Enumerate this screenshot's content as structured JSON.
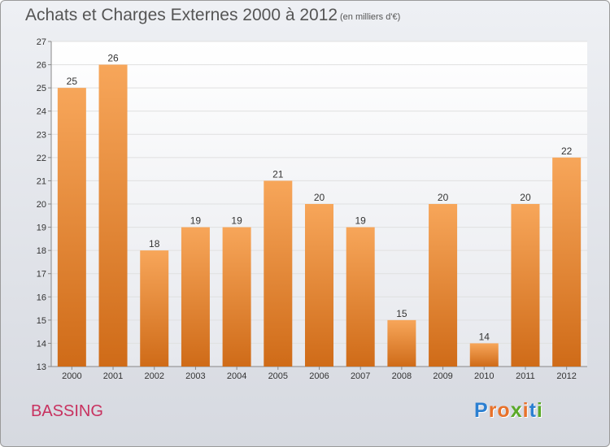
{
  "chart_data": {
    "type": "bar",
    "title": "Achats et Charges Externes 2000 à 2012",
    "unit": "(en milliers d'€)",
    "categories": [
      "2000",
      "2001",
      "2002",
      "2003",
      "2004",
      "2005",
      "2006",
      "2007",
      "2008",
      "2009",
      "2010",
      "2011",
      "2012"
    ],
    "values": [
      25,
      26,
      18,
      19,
      19,
      21,
      20,
      19,
      15,
      20,
      14,
      20,
      22
    ],
    "ylim": [
      13,
      27
    ],
    "yticks": [
      13,
      14,
      15,
      16,
      17,
      18,
      19,
      20,
      21,
      22,
      23,
      24,
      25,
      26,
      27
    ],
    "grid": true,
    "bar_color": "#f0913c"
  },
  "footer": {
    "commune": "BASSING",
    "logo": "Proxiti"
  },
  "logo_colors": [
    "#2b7fd1",
    "#e8712a",
    "#e8712a",
    "#5aa928",
    "#e8712a",
    "#2b7fd1",
    "#5aa928"
  ]
}
